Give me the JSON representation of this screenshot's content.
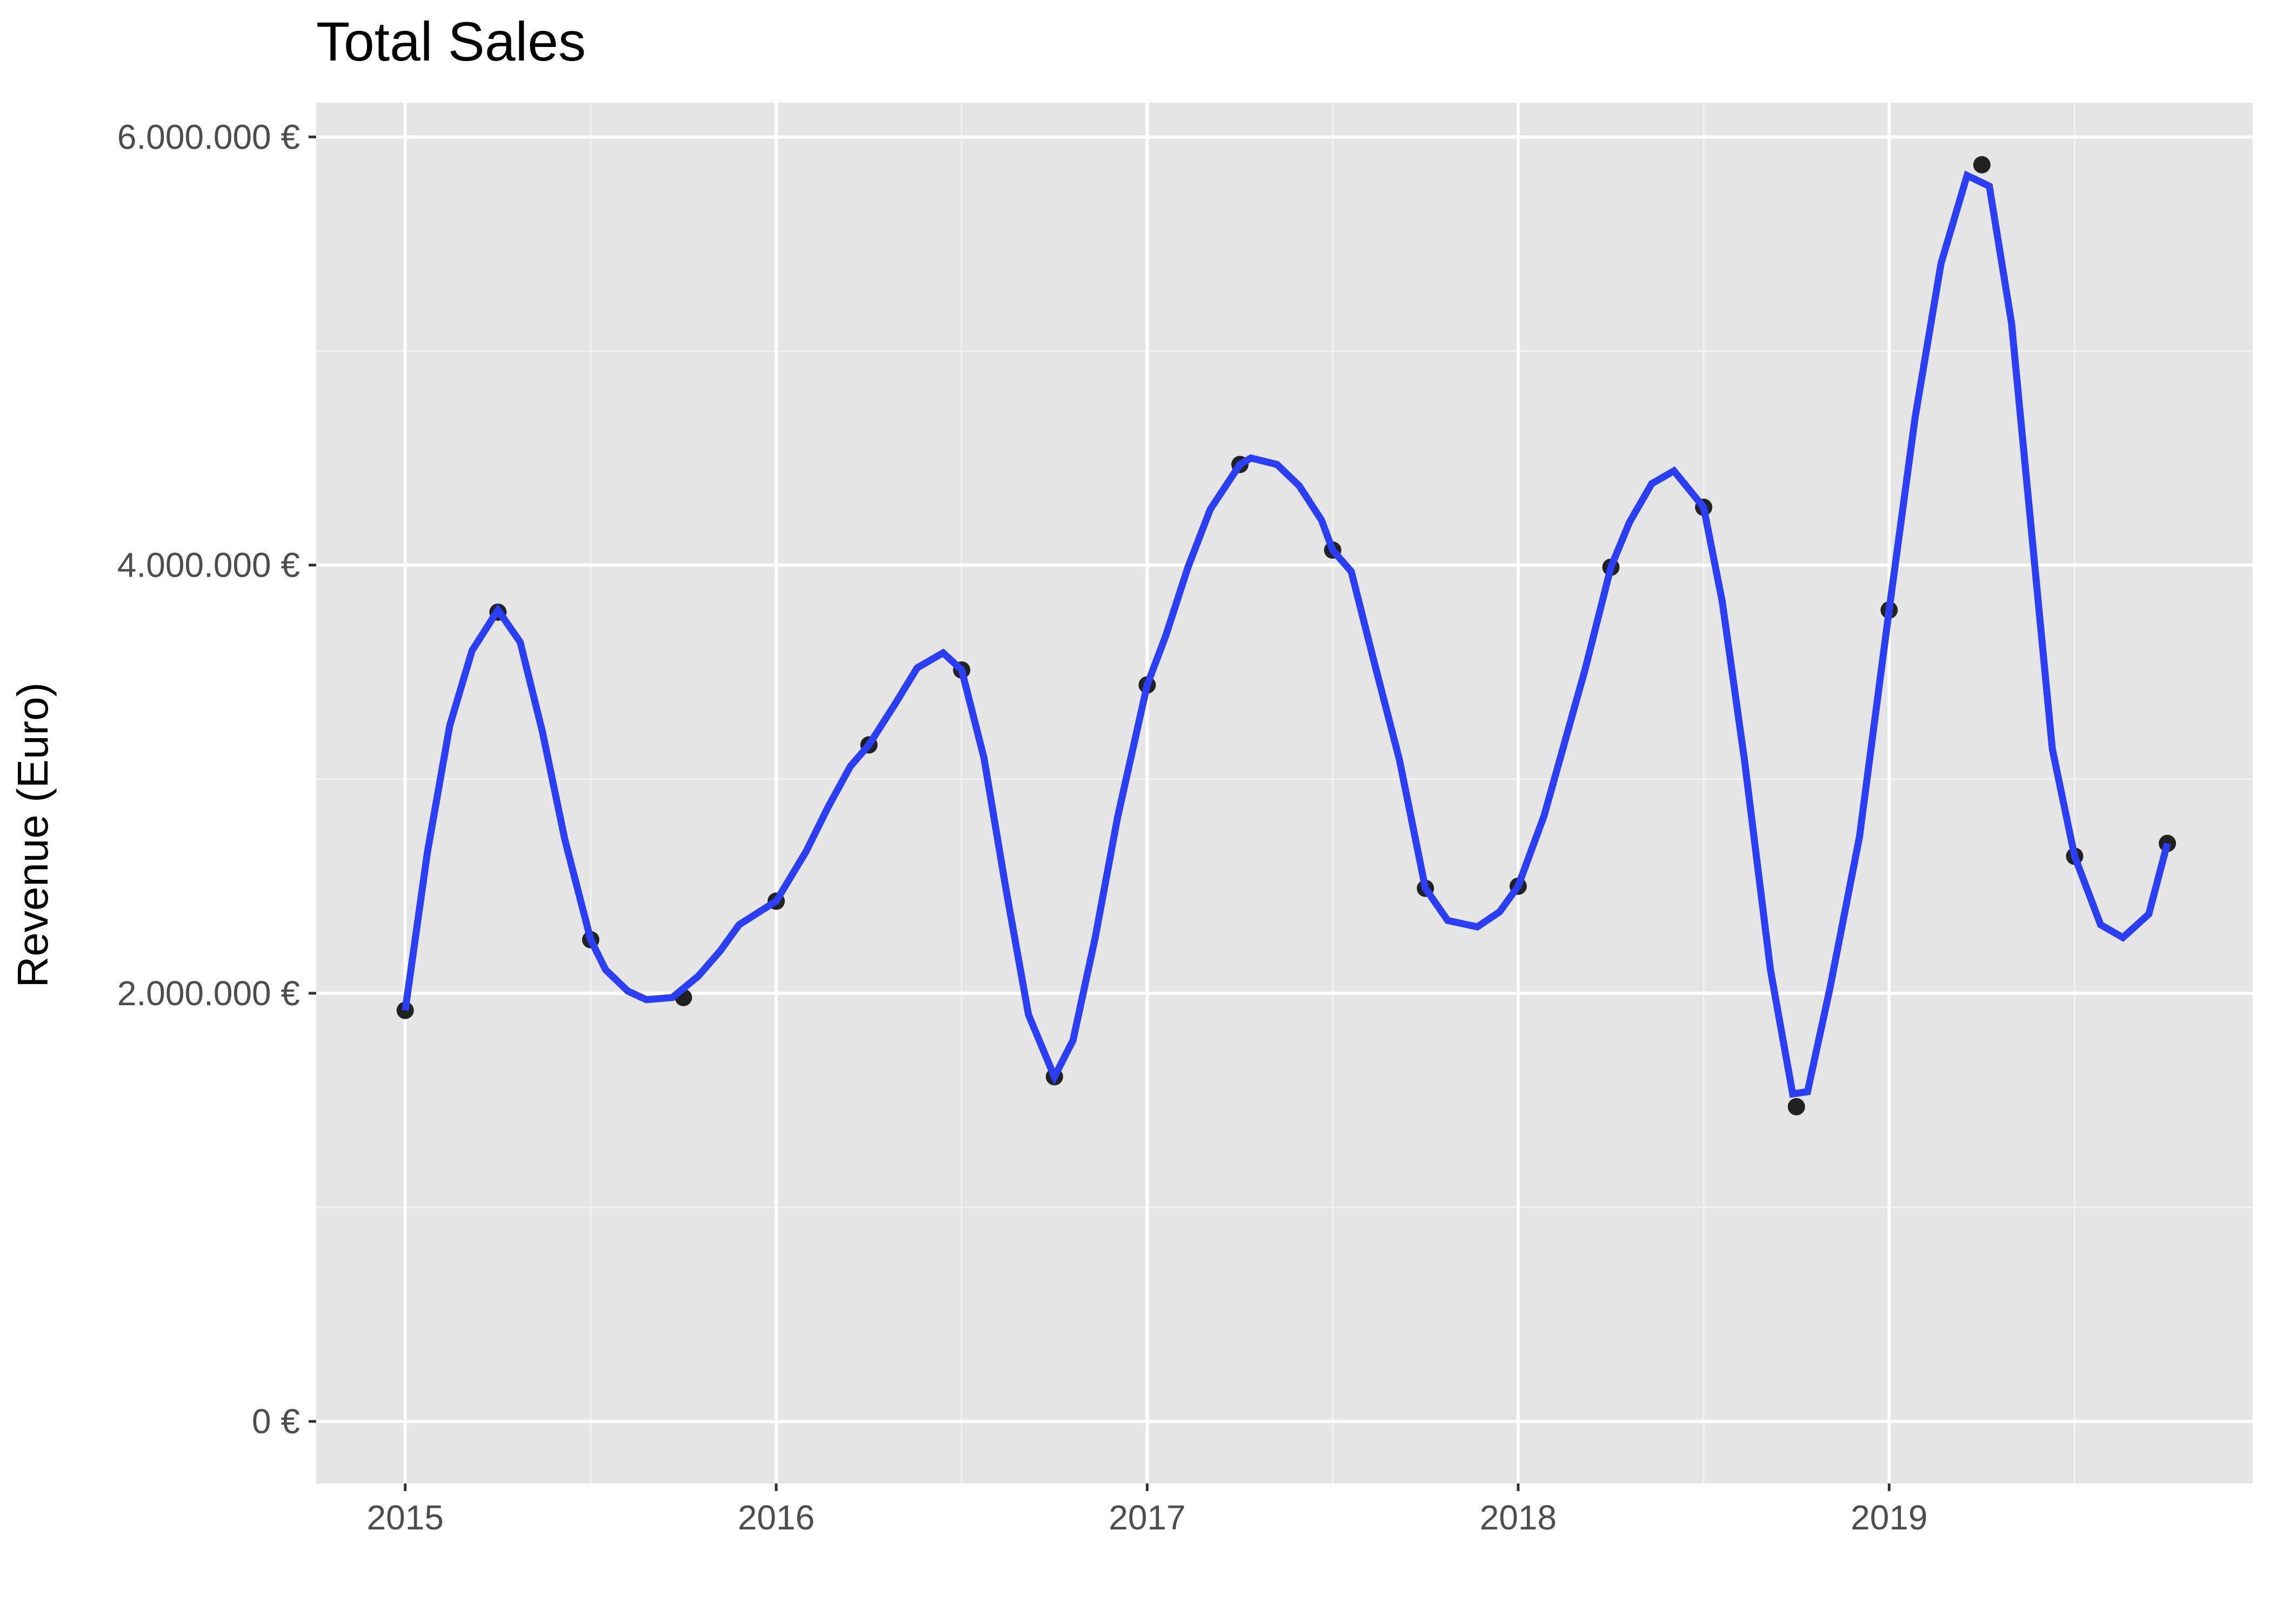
{
  "chart_data": {
    "type": "line",
    "title": "Total Sales",
    "xlabel": "",
    "ylabel": "Revenue (Euro)",
    "x_ticks": [
      2015,
      2016,
      2017,
      2018,
      2019
    ],
    "x_tick_labels": [
      "2015",
      "2016",
      "2017",
      "2018",
      "2019"
    ],
    "y_ticks": [
      0,
      2000000,
      4000000,
      6000000
    ],
    "y_tick_labels": [
      "0 €",
      "2.000.000 €",
      "4.000.000 €",
      "6.000.000 €"
    ],
    "xlim": [
      2014.76,
      2019.98
    ],
    "ylim": [
      -290000,
      6160000
    ],
    "grid": true,
    "legend": "none",
    "colors": {
      "panel_background": "#E5E5E5",
      "grid_major": "#FFFFFF",
      "grid_minor": "#F2F2F2",
      "smooth_line": "#2A3EF5",
      "points": "#222222",
      "axis_text": "#4D4D4D",
      "title_text": "#000000"
    },
    "series": [
      {
        "kind": "points",
        "x": [
          2015.0,
          2015.25,
          2015.5,
          2015.75,
          2016.0,
          2016.25,
          2016.5,
          2016.75,
          2017.0,
          2017.25,
          2017.5,
          2017.75,
          2018.0,
          2018.25,
          2018.5,
          2018.75,
          2019.0,
          2019.25,
          2019.5,
          2019.75
        ],
        "values": [
          1920000,
          3780000,
          2250000,
          1980000,
          2430000,
          3160000,
          3510000,
          1610000,
          3440000,
          4470000,
          4070000,
          2490000,
          2500000,
          3990000,
          4270000,
          1470000,
          3790000,
          5870000,
          2640000,
          2700000
        ]
      },
      {
        "kind": "smooth-line",
        "x": [
          2015.0,
          2015.06,
          2015.12,
          2015.18,
          2015.25,
          2015.31,
          2015.37,
          2015.43,
          2015.5,
          2015.54,
          2015.6,
          2015.65,
          2015.72,
          2015.79,
          2015.85,
          2015.9,
          2016.0,
          2016.08,
          2016.14,
          2016.2,
          2016.25,
          2016.32,
          2016.38,
          2016.45,
          2016.5,
          2016.56,
          2016.62,
          2016.68,
          2016.75,
          2016.8,
          2016.86,
          2016.92,
          2017.0,
          2017.05,
          2017.11,
          2017.17,
          2017.25,
          2017.28,
          2017.35,
          2017.41,
          2017.47,
          2017.5,
          2017.55,
          2017.61,
          2017.68,
          2017.75,
          2017.81,
          2017.89,
          2017.95,
          2018.0,
          2018.07,
          2018.18,
          2018.25,
          2018.3,
          2018.36,
          2018.42,
          2018.5,
          2018.55,
          2018.61,
          2018.68,
          2018.74,
          2018.78,
          2018.84,
          2018.92,
          2019.0,
          2019.07,
          2019.14,
          2019.21,
          2019.27,
          2019.33,
          2019.44,
          2019.5,
          2019.57,
          2019.63,
          2019.7,
          2019.75
        ],
        "values": [
          1920000,
          2660000,
          3250000,
          3600000,
          3790000,
          3640000,
          3220000,
          2720000,
          2250000,
          2110000,
          2010000,
          1970000,
          1980000,
          2080000,
          2200000,
          2320000,
          2430000,
          2660000,
          2870000,
          3060000,
          3160000,
          3350000,
          3520000,
          3590000,
          3510000,
          3100000,
          2480000,
          1900000,
          1610000,
          1780000,
          2260000,
          2820000,
          3440000,
          3670000,
          3990000,
          4260000,
          4470000,
          4500000,
          4470000,
          4370000,
          4210000,
          4070000,
          3970000,
          3560000,
          3090000,
          2490000,
          2340000,
          2310000,
          2380000,
          2500000,
          2830000,
          3510000,
          3990000,
          4200000,
          4380000,
          4440000,
          4270000,
          3830000,
          3090000,
          2110000,
          1530000,
          1540000,
          2020000,
          2730000,
          3790000,
          4690000,
          5410000,
          5820000,
          5770000,
          5130000,
          3140000,
          2640000,
          2320000,
          2260000,
          2370000,
          2700000
        ]
      }
    ]
  }
}
